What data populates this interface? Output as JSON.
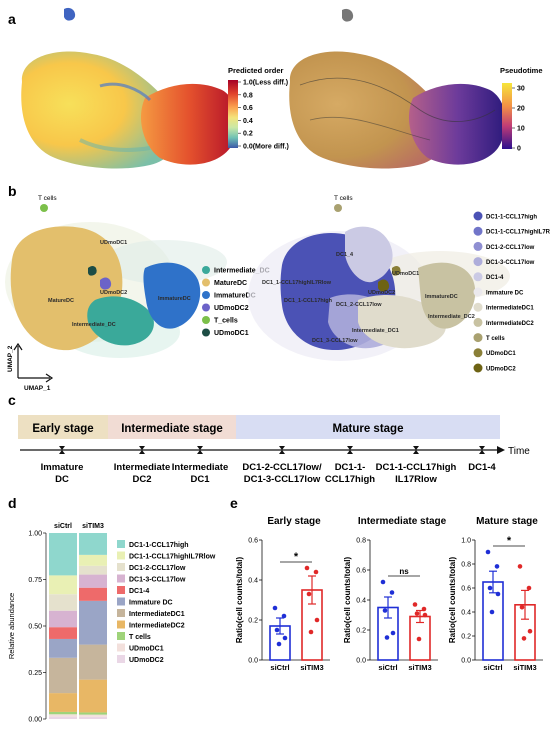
{
  "panels": {
    "a": "a",
    "b": "b",
    "c": "c",
    "d": "d",
    "e": "e"
  },
  "panel_a": {
    "predicted_order_title": "Predicted order",
    "predicted_order_ticks": [
      "1.0(Less diff.)",
      "0.8",
      "0.6",
      "0.4",
      "0.2",
      "0.0(More diff.)"
    ],
    "pseudotime_title": "Pseudotime",
    "pseudotime_ticks": [
      "30",
      "20",
      "10",
      "0"
    ]
  },
  "panel_b": {
    "tcells_label": "T cells",
    "left_labels": [
      "MatureDC",
      "UDmoDC1",
      "UDmoDC2",
      "ImmatureDC",
      "Intermediate_DC"
    ],
    "left_legend": [
      {
        "label": "Intermediate_DC",
        "color": "#3aa99a"
      },
      {
        "label": "MatureDC",
        "color": "#e3bf6c"
      },
      {
        "label": "ImmatureDC",
        "color": "#2f72c9"
      },
      {
        "label": "UDmoDC2",
        "color": "#6c63c8"
      },
      {
        "label": "T_cells",
        "color": "#7cc04a"
      },
      {
        "label": "UDmoDC1",
        "color": "#1d4d45"
      }
    ],
    "right_labels": [
      "DC1_4",
      "DC1_1-CCL17highIL7Rlow",
      "DC1_1-CCL17high",
      "UDmoDC1",
      "UDmoDC2",
      "DC1_2-CCL17low",
      "ImmatureDC",
      "Intermediate_DC1",
      "DC1_3-CCL17low",
      "Intermediate_DC2"
    ],
    "right_legend": [
      {
        "label": "DC1-1-CCL17high",
        "color": "#4b52b5"
      },
      {
        "label": "DC1-1-CCL17highIL7Rlow",
        "color": "#7175c9"
      },
      {
        "label": "DC1-2-CCL17low",
        "color": "#8f8fd2"
      },
      {
        "label": "DC1-3-CCL17low",
        "color": "#aeadda"
      },
      {
        "label": "DC1-4",
        "color": "#cbcae4"
      },
      {
        "label": "Immature DC",
        "color": "#ebe9ed"
      },
      {
        "label": "IntermediateDC1",
        "color": "#e0dccc"
      },
      {
        "label": "IntermediateDC2",
        "color": "#c8c2a2"
      },
      {
        "label": "T cells",
        "color": "#a9a170"
      },
      {
        "label": "UDmoDC1",
        "color": "#8a7f37"
      },
      {
        "label": "UDmoDC2",
        "color": "#6e6314"
      }
    ],
    "umap_x": "UMAP_1",
    "umap_y": "UMAP_2"
  },
  "panel_c": {
    "stages": [
      {
        "label": "Early stage",
        "color": "#ede0c2"
      },
      {
        "label": "Intermediate stage",
        "color": "#f1dcd4"
      },
      {
        "label": "Mature stage",
        "color": "#d8ddf3"
      }
    ],
    "time_label": "Time",
    "points": [
      "Immature\nDC",
      "Intermediate\nDC2",
      "Intermediate\nDC1",
      "DC1-2-CCL17low/\nDC1-3-CCL17low",
      "DC1-1-\nCCL17high",
      "DC1-1-CCL17high\nIL17Rlow",
      "DC1-4"
    ]
  },
  "chart_data": [
    {
      "type": "bar",
      "subtype": "stacked-100",
      "categories": [
        "siCtrl",
        "siTIM3"
      ],
      "ylabel": "Relative abundance",
      "ylim": [
        0,
        1
      ],
      "yticks": [
        "0.00",
        "0.25",
        "0.50",
        "0.75",
        "1.00"
      ],
      "series": [
        {
          "name": "UDmoDC2",
          "color": "#ead7e6",
          "values": [
            0.01,
            0.01
          ]
        },
        {
          "name": "UDmoDC1",
          "color": "#f3e0dc",
          "values": [
            0.01,
            0.01
          ]
        },
        {
          "name": "T cells",
          "color": "#9fd37a",
          "values": [
            0.01,
            0.01
          ]
        },
        {
          "name": "IntermediateDC2",
          "color": "#e8b765",
          "values": [
            0.08,
            0.15
          ]
        },
        {
          "name": "IntermediateDC1",
          "color": "#c6b59c",
          "values": [
            0.15,
            0.16
          ]
        },
        {
          "name": "Immature DC",
          "color": "#9aa5c6",
          "values": [
            0.08,
            0.2
          ]
        },
        {
          "name": "DC1-4",
          "color": "#ee6a6a",
          "values": [
            0.05,
            0.06
          ]
        },
        {
          "name": "DC1-3-CCL17low",
          "color": "#d7b3d1",
          "values": [
            0.07,
            0.06
          ]
        },
        {
          "name": "DC1-2-CCL17low",
          "color": "#e5e1cd",
          "values": [
            0.07,
            0.04
          ]
        },
        {
          "name": "DC1-1-CCL17highIL7Rlow",
          "color": "#e9f0b4",
          "values": [
            0.08,
            0.05
          ]
        },
        {
          "name": "DC1-1-CCL17high",
          "color": "#8fd7cd",
          "values": [
            0.18,
            0.1
          ]
        }
      ],
      "legend_order": [
        "DC1-1-CCL17high",
        "DC1-1-CCL17highIL7Rlow",
        "DC1-2-CCL17low",
        "DC1-3-CCL17low",
        "DC1-4",
        "Immature DC",
        "IntermediateDC1",
        "IntermediateDC2",
        "T cells",
        "UDmoDC1",
        "UDmoDC2"
      ]
    },
    {
      "type": "scatter",
      "subtype": "bar-mean-sem",
      "title": "Early stage",
      "ylabel": "Ratio(cell counts/total)",
      "categories": [
        "siCtrl",
        "siTIM3"
      ],
      "ylim": [
        0,
        0.6
      ],
      "yticks": [
        "0.0",
        "0.2",
        "0.4",
        "0.6"
      ],
      "means": [
        0.17,
        0.35
      ],
      "sem": [
        0.04,
        0.07
      ],
      "points": [
        [
          0.26,
          0.22,
          0.15,
          0.11,
          0.08
        ],
        [
          0.46,
          0.44,
          0.33,
          0.2,
          0.14
        ]
      ],
      "colors": [
        "#1f2fd6",
        "#e02828"
      ],
      "significance": "*"
    },
    {
      "type": "scatter",
      "subtype": "bar-mean-sem",
      "title": "Intermediate stage",
      "ylabel": "Ratio(cell counts/total)",
      "categories": [
        "siCtrl",
        "siTIM3"
      ],
      "ylim": [
        0,
        0.8
      ],
      "yticks": [
        "0.0",
        "0.2",
        "0.4",
        "0.6",
        "0.8"
      ],
      "means": [
        0.35,
        0.29
      ],
      "sem": [
        0.07,
        0.04
      ],
      "points": [
        [
          0.52,
          0.45,
          0.33,
          0.18,
          0.15
        ],
        [
          0.37,
          0.34,
          0.31,
          0.3,
          0.14
        ]
      ],
      "colors": [
        "#1f2fd6",
        "#e02828"
      ],
      "significance": "ns"
    },
    {
      "type": "scatter",
      "subtype": "bar-mean-sem",
      "title": "Mature stage",
      "ylabel": "Ratio(cell counts/total)",
      "categories": [
        "siCtrl",
        "siTIM3"
      ],
      "ylim": [
        0,
        1.0
      ],
      "yticks": [
        "0.0",
        "0.2",
        "0.4",
        "0.6",
        "0.8",
        "1.0"
      ],
      "means": [
        0.65,
        0.46
      ],
      "sem": [
        0.09,
        0.12
      ],
      "points": [
        [
          0.9,
          0.78,
          0.6,
          0.55,
          0.4
        ],
        [
          0.78,
          0.6,
          0.44,
          0.24,
          0.18
        ]
      ],
      "colors": [
        "#1f2fd6",
        "#e02828"
      ],
      "significance": "*"
    }
  ]
}
